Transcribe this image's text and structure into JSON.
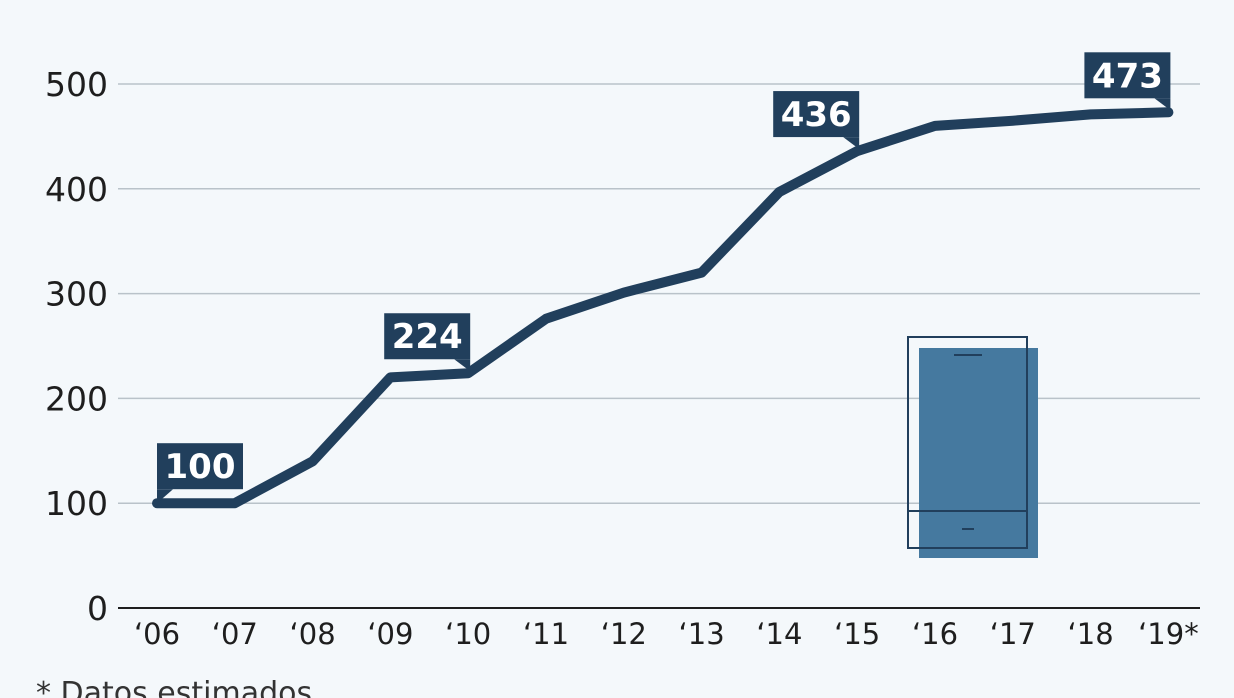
{
  "chart_data": {
    "type": "line",
    "categories": [
      "'06",
      "'07",
      "'08",
      "'09",
      "'10",
      "'11",
      "'12",
      "'13",
      "'14",
      "'15",
      "'16",
      "'17",
      "'18",
      "'19*"
    ],
    "series": [
      {
        "values": [
          100,
          100,
          140,
          220,
          224,
          276,
          301,
          320,
          397,
          436,
          460,
          465,
          471,
          473
        ]
      }
    ],
    "callouts": [
      {
        "index": 0,
        "label": "100",
        "pointer": "bottom-left"
      },
      {
        "index": 4,
        "label": "224",
        "pointer": "bottom-right"
      },
      {
        "index": 9,
        "label": "436",
        "pointer": "bottom-right"
      },
      {
        "index": 13,
        "label": "473",
        "pointer": "bottom-right"
      }
    ],
    "yticks": [
      0,
      100,
      200,
      300,
      400,
      500
    ],
    "ylim": [
      0,
      500
    ],
    "grid": true,
    "line_color": "#213f5c",
    "callout_color": "#213f5c",
    "icon": "smartphone-icon",
    "icon_color": "#45799f"
  },
  "footnote": "* Datos estimados"
}
